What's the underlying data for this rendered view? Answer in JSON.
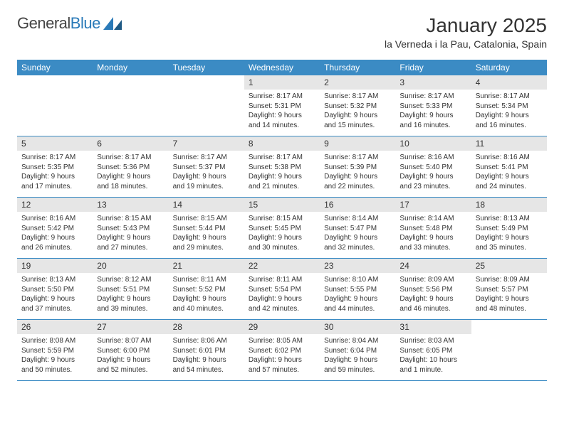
{
  "brand": {
    "part1": "General",
    "part2": "Blue"
  },
  "title": "January 2025",
  "location": "la Verneda i la Pau, Catalonia, Spain",
  "colors": {
    "header_bg": "#3b8bc4",
    "daynum_bg": "#e6e6e6",
    "text": "#333333",
    "brand_blue": "#2a7ab8"
  },
  "weekdays": [
    "Sunday",
    "Monday",
    "Tuesday",
    "Wednesday",
    "Thursday",
    "Friday",
    "Saturday"
  ],
  "weeks": [
    {
      "nums": [
        "",
        "",
        "",
        "1",
        "2",
        "3",
        "4"
      ],
      "details": [
        null,
        null,
        null,
        {
          "sunrise": "Sunrise: 8:17 AM",
          "sunset": "Sunset: 5:31 PM",
          "day1": "Daylight: 9 hours",
          "day2": "and 14 minutes."
        },
        {
          "sunrise": "Sunrise: 8:17 AM",
          "sunset": "Sunset: 5:32 PM",
          "day1": "Daylight: 9 hours",
          "day2": "and 15 minutes."
        },
        {
          "sunrise": "Sunrise: 8:17 AM",
          "sunset": "Sunset: 5:33 PM",
          "day1": "Daylight: 9 hours",
          "day2": "and 16 minutes."
        },
        {
          "sunrise": "Sunrise: 8:17 AM",
          "sunset": "Sunset: 5:34 PM",
          "day1": "Daylight: 9 hours",
          "day2": "and 16 minutes."
        }
      ]
    },
    {
      "nums": [
        "5",
        "6",
        "7",
        "8",
        "9",
        "10",
        "11"
      ],
      "details": [
        {
          "sunrise": "Sunrise: 8:17 AM",
          "sunset": "Sunset: 5:35 PM",
          "day1": "Daylight: 9 hours",
          "day2": "and 17 minutes."
        },
        {
          "sunrise": "Sunrise: 8:17 AM",
          "sunset": "Sunset: 5:36 PM",
          "day1": "Daylight: 9 hours",
          "day2": "and 18 minutes."
        },
        {
          "sunrise": "Sunrise: 8:17 AM",
          "sunset": "Sunset: 5:37 PM",
          "day1": "Daylight: 9 hours",
          "day2": "and 19 minutes."
        },
        {
          "sunrise": "Sunrise: 8:17 AM",
          "sunset": "Sunset: 5:38 PM",
          "day1": "Daylight: 9 hours",
          "day2": "and 21 minutes."
        },
        {
          "sunrise": "Sunrise: 8:17 AM",
          "sunset": "Sunset: 5:39 PM",
          "day1": "Daylight: 9 hours",
          "day2": "and 22 minutes."
        },
        {
          "sunrise": "Sunrise: 8:16 AM",
          "sunset": "Sunset: 5:40 PM",
          "day1": "Daylight: 9 hours",
          "day2": "and 23 minutes."
        },
        {
          "sunrise": "Sunrise: 8:16 AM",
          "sunset": "Sunset: 5:41 PM",
          "day1": "Daylight: 9 hours",
          "day2": "and 24 minutes."
        }
      ]
    },
    {
      "nums": [
        "12",
        "13",
        "14",
        "15",
        "16",
        "17",
        "18"
      ],
      "details": [
        {
          "sunrise": "Sunrise: 8:16 AM",
          "sunset": "Sunset: 5:42 PM",
          "day1": "Daylight: 9 hours",
          "day2": "and 26 minutes."
        },
        {
          "sunrise": "Sunrise: 8:15 AM",
          "sunset": "Sunset: 5:43 PM",
          "day1": "Daylight: 9 hours",
          "day2": "and 27 minutes."
        },
        {
          "sunrise": "Sunrise: 8:15 AM",
          "sunset": "Sunset: 5:44 PM",
          "day1": "Daylight: 9 hours",
          "day2": "and 29 minutes."
        },
        {
          "sunrise": "Sunrise: 8:15 AM",
          "sunset": "Sunset: 5:45 PM",
          "day1": "Daylight: 9 hours",
          "day2": "and 30 minutes."
        },
        {
          "sunrise": "Sunrise: 8:14 AM",
          "sunset": "Sunset: 5:47 PM",
          "day1": "Daylight: 9 hours",
          "day2": "and 32 minutes."
        },
        {
          "sunrise": "Sunrise: 8:14 AM",
          "sunset": "Sunset: 5:48 PM",
          "day1": "Daylight: 9 hours",
          "day2": "and 33 minutes."
        },
        {
          "sunrise": "Sunrise: 8:13 AM",
          "sunset": "Sunset: 5:49 PM",
          "day1": "Daylight: 9 hours",
          "day2": "and 35 minutes."
        }
      ]
    },
    {
      "nums": [
        "19",
        "20",
        "21",
        "22",
        "23",
        "24",
        "25"
      ],
      "details": [
        {
          "sunrise": "Sunrise: 8:13 AM",
          "sunset": "Sunset: 5:50 PM",
          "day1": "Daylight: 9 hours",
          "day2": "and 37 minutes."
        },
        {
          "sunrise": "Sunrise: 8:12 AM",
          "sunset": "Sunset: 5:51 PM",
          "day1": "Daylight: 9 hours",
          "day2": "and 39 minutes."
        },
        {
          "sunrise": "Sunrise: 8:11 AM",
          "sunset": "Sunset: 5:52 PM",
          "day1": "Daylight: 9 hours",
          "day2": "and 40 minutes."
        },
        {
          "sunrise": "Sunrise: 8:11 AM",
          "sunset": "Sunset: 5:54 PM",
          "day1": "Daylight: 9 hours",
          "day2": "and 42 minutes."
        },
        {
          "sunrise": "Sunrise: 8:10 AM",
          "sunset": "Sunset: 5:55 PM",
          "day1": "Daylight: 9 hours",
          "day2": "and 44 minutes."
        },
        {
          "sunrise": "Sunrise: 8:09 AM",
          "sunset": "Sunset: 5:56 PM",
          "day1": "Daylight: 9 hours",
          "day2": "and 46 minutes."
        },
        {
          "sunrise": "Sunrise: 8:09 AM",
          "sunset": "Sunset: 5:57 PM",
          "day1": "Daylight: 9 hours",
          "day2": "and 48 minutes."
        }
      ]
    },
    {
      "nums": [
        "26",
        "27",
        "28",
        "29",
        "30",
        "31",
        ""
      ],
      "details": [
        {
          "sunrise": "Sunrise: 8:08 AM",
          "sunset": "Sunset: 5:59 PM",
          "day1": "Daylight: 9 hours",
          "day2": "and 50 minutes."
        },
        {
          "sunrise": "Sunrise: 8:07 AM",
          "sunset": "Sunset: 6:00 PM",
          "day1": "Daylight: 9 hours",
          "day2": "and 52 minutes."
        },
        {
          "sunrise": "Sunrise: 8:06 AM",
          "sunset": "Sunset: 6:01 PM",
          "day1": "Daylight: 9 hours",
          "day2": "and 54 minutes."
        },
        {
          "sunrise": "Sunrise: 8:05 AM",
          "sunset": "Sunset: 6:02 PM",
          "day1": "Daylight: 9 hours",
          "day2": "and 57 minutes."
        },
        {
          "sunrise": "Sunrise: 8:04 AM",
          "sunset": "Sunset: 6:04 PM",
          "day1": "Daylight: 9 hours",
          "day2": "and 59 minutes."
        },
        {
          "sunrise": "Sunrise: 8:03 AM",
          "sunset": "Sunset: 6:05 PM",
          "day1": "Daylight: 10 hours",
          "day2": "and 1 minute."
        },
        null
      ]
    }
  ]
}
